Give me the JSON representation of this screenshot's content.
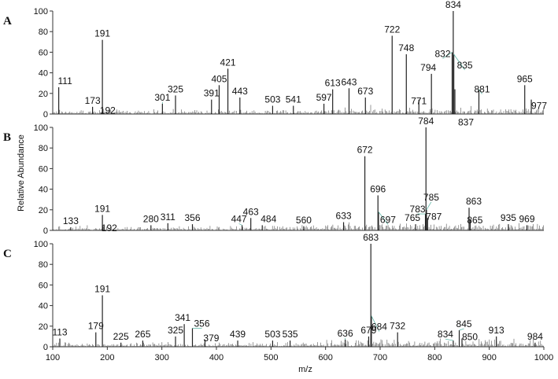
{
  "figure": {
    "x_label": "m/z",
    "y_label": "Relative Abundance",
    "x_ticks": [
      100,
      200,
      300,
      400,
      500,
      600,
      700,
      800,
      900,
      1000
    ],
    "y_ticks": [
      0,
      20,
      40,
      60,
      80,
      100
    ],
    "colors": {
      "peak": "#222222",
      "axis": "#333333",
      "leader": "#5fb8a8"
    }
  },
  "chart_data": [
    {
      "type": "bar",
      "panel_label": "A",
      "xlim": [
        100,
        1000
      ],
      "ylim": [
        0,
        100
      ],
      "peaks": [
        {
          "label": "111",
          "x": 111,
          "y": 26
        },
        {
          "label": "173",
          "x": 173,
          "y": 7
        },
        {
          "label": "191",
          "x": 191,
          "y": 72
        },
        {
          "label": "192",
          "x": 192,
          "y": 5
        },
        {
          "label": "301",
          "x": 301,
          "y": 10
        },
        {
          "label": "325",
          "x": 325,
          "y": 18
        },
        {
          "label": "391",
          "x": 391,
          "y": 14
        },
        {
          "label": "405",
          "x": 405,
          "y": 28
        },
        {
          "label": "421",
          "x": 421,
          "y": 44
        },
        {
          "label": "443",
          "x": 443,
          "y": 16
        },
        {
          "label": "503",
          "x": 503,
          "y": 8
        },
        {
          "label": "541",
          "x": 541,
          "y": 8
        },
        {
          "label": "597",
          "x": 597,
          "y": 10
        },
        {
          "label": "613",
          "x": 613,
          "y": 24
        },
        {
          "label": "643",
          "x": 643,
          "y": 25
        },
        {
          "label": "673",
          "x": 673,
          "y": 16
        },
        {
          "label": "722",
          "x": 722,
          "y": 76
        },
        {
          "label": "748",
          "x": 748,
          "y": 58
        },
        {
          "label": "771",
          "x": 771,
          "y": 14
        },
        {
          "label": "794",
          "x": 794,
          "y": 39
        },
        {
          "label": "832",
          "x": 832,
          "y": 60
        },
        {
          "label": "834",
          "x": 834,
          "y": 100
        },
        {
          "label": "835",
          "x": 835,
          "y": 58
        },
        {
          "label": "837",
          "x": 837,
          "y": 24
        },
        {
          "label": "881",
          "x": 881,
          "y": 24
        },
        {
          "label": "965",
          "x": 965,
          "y": 28
        },
        {
          "label": "977",
          "x": 977,
          "y": 14
        }
      ]
    },
    {
      "type": "bar",
      "panel_label": "B",
      "xlim": [
        100,
        1000
      ],
      "ylim": [
        0,
        100
      ],
      "peaks": [
        {
          "label": "133",
          "x": 133,
          "y": 3
        },
        {
          "label": "191",
          "x": 191,
          "y": 15
        },
        {
          "label": "192",
          "x": 192,
          "y": 4
        },
        {
          "label": "280",
          "x": 280,
          "y": 5
        },
        {
          "label": "311",
          "x": 311,
          "y": 7
        },
        {
          "label": "356",
          "x": 356,
          "y": 6
        },
        {
          "label": "447",
          "x": 447,
          "y": 5
        },
        {
          "label": "463",
          "x": 463,
          "y": 12
        },
        {
          "label": "484",
          "x": 484,
          "y": 5
        },
        {
          "label": "560",
          "x": 560,
          "y": 4
        },
        {
          "label": "633",
          "x": 633,
          "y": 8
        },
        {
          "label": "672",
          "x": 672,
          "y": 72
        },
        {
          "label": "696",
          "x": 696,
          "y": 34
        },
        {
          "label": "697",
          "x": 697,
          "y": 18
        },
        {
          "label": "765",
          "x": 765,
          "y": 6
        },
        {
          "label": "783",
          "x": 783,
          "y": 16
        },
        {
          "label": "784",
          "x": 784,
          "y": 100
        },
        {
          "label": "785",
          "x": 785,
          "y": 20
        },
        {
          "label": "787",
          "x": 787,
          "y": 12
        },
        {
          "label": "863",
          "x": 863,
          "y": 22
        },
        {
          "label": "865",
          "x": 865,
          "y": 10
        },
        {
          "label": "935",
          "x": 935,
          "y": 6
        },
        {
          "label": "969",
          "x": 969,
          "y": 5
        }
      ]
    },
    {
      "type": "bar",
      "panel_label": "C",
      "xlim": [
        100,
        1000
      ],
      "ylim": [
        0,
        100
      ],
      "peaks": [
        {
          "label": "113",
          "x": 113,
          "y": 8
        },
        {
          "label": "179",
          "x": 179,
          "y": 14
        },
        {
          "label": "191",
          "x": 191,
          "y": 50
        },
        {
          "label": "225",
          "x": 225,
          "y": 4
        },
        {
          "label": "265",
          "x": 265,
          "y": 6
        },
        {
          "label": "325",
          "x": 325,
          "y": 10
        },
        {
          "label": "341",
          "x": 341,
          "y": 22
        },
        {
          "label": "356",
          "x": 356,
          "y": 18
        },
        {
          "label": "379",
          "x": 379,
          "y": 7
        },
        {
          "label": "439",
          "x": 439,
          "y": 6
        },
        {
          "label": "503",
          "x": 503,
          "y": 6
        },
        {
          "label": "535",
          "x": 535,
          "y": 6
        },
        {
          "label": "636",
          "x": 636,
          "y": 7
        },
        {
          "label": "679",
          "x": 679,
          "y": 10
        },
        {
          "label": "683",
          "x": 683,
          "y": 100
        },
        {
          "label": "684",
          "x": 684,
          "y": 30
        },
        {
          "label": "732",
          "x": 732,
          "y": 14
        },
        {
          "label": "834",
          "x": 834,
          "y": 6
        },
        {
          "label": "845",
          "x": 845,
          "y": 16
        },
        {
          "label": "850",
          "x": 850,
          "y": 8
        },
        {
          "label": "913",
          "x": 913,
          "y": 10
        },
        {
          "label": "984",
          "x": 984,
          "y": 4
        }
      ]
    }
  ]
}
